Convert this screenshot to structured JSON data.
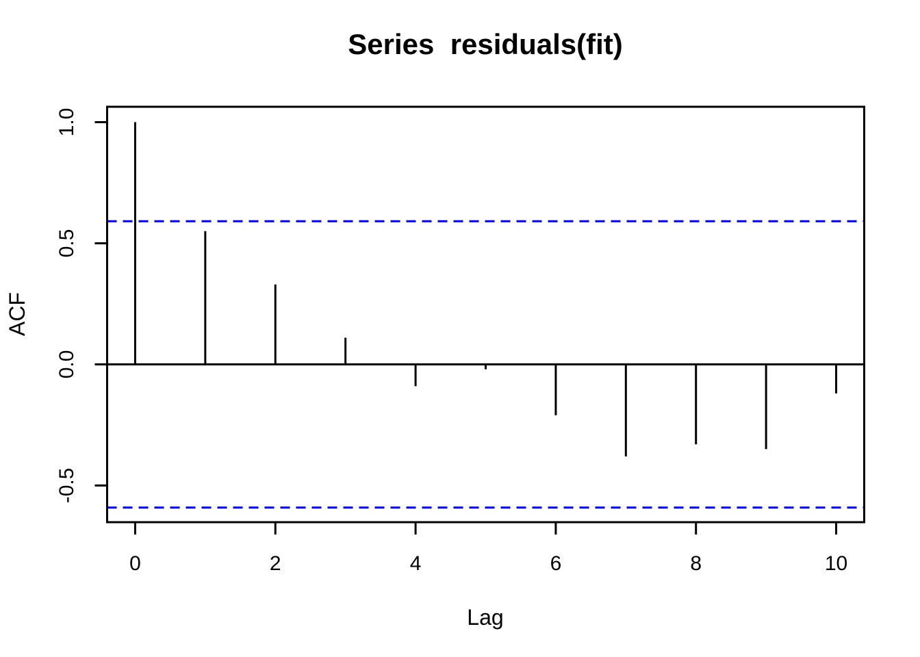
{
  "chart_data": {
    "type": "bar",
    "subtype": "acf-spike-plot",
    "title": "Series  residuals(fit)",
    "xlabel": "Lag",
    "ylabel": "ACF",
    "x": [
      0,
      1,
      2,
      3,
      4,
      5,
      6,
      7,
      8,
      9,
      10
    ],
    "acf_values": [
      1.0,
      0.55,
      0.33,
      0.11,
      -0.09,
      -0.02,
      -0.21,
      -0.38,
      -0.33,
      -0.35,
      -0.12
    ],
    "confidence_bounds": [
      0.591,
      -0.591
    ],
    "confidence_line_style": "dashed",
    "zero_line": 0,
    "x_ticks": [
      0,
      2,
      4,
      6,
      8,
      10
    ],
    "x_tick_labels": [
      "0",
      "2",
      "4",
      "6",
      "8",
      "10"
    ],
    "y_ticks": [
      1.0,
      0.5,
      0.0,
      -0.5
    ],
    "y_tick_labels": [
      "1.0",
      "0.5",
      "0.0",
      "-0.5"
    ],
    "xlim": [
      -0.4,
      10.4
    ],
    "ylim": [
      -0.6515,
      1.0635
    ],
    "grid": false,
    "legend": null,
    "colors": {
      "background": "#ffffff",
      "spike": "#000000",
      "axis": "#000000",
      "text": "#000000",
      "confidence_line": "#0000EE"
    }
  }
}
